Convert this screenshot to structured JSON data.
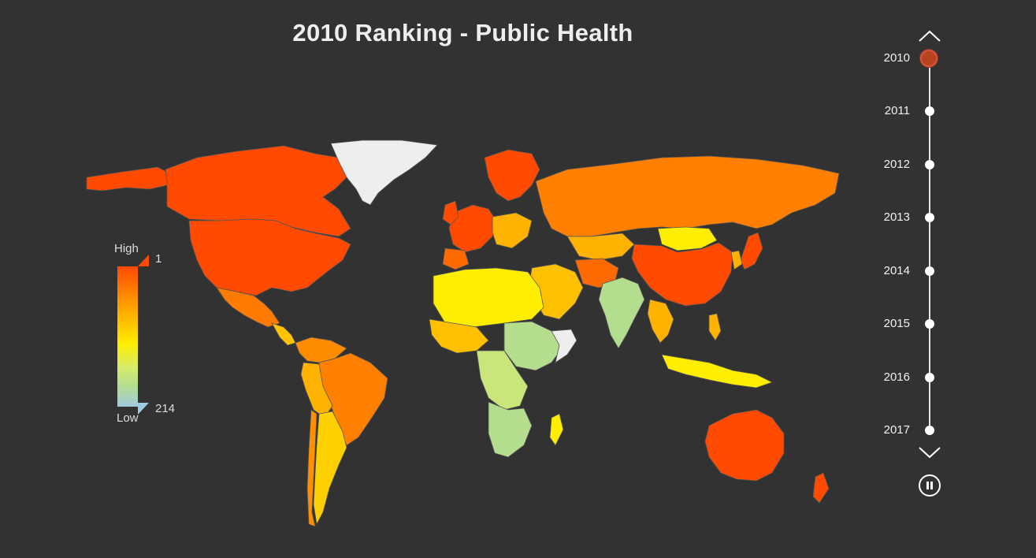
{
  "title": "2010 Ranking - Public Health",
  "legend": {
    "high_label": "High",
    "low_label": "Low",
    "max_rank": "1",
    "min_rank": "214",
    "colors": [
      "#ff4a00",
      "#ff8000",
      "#ffb300",
      "#ffee00",
      "#d6ec6a",
      "#b4dd8e",
      "#a2cbe0"
    ]
  },
  "timeline": {
    "years": [
      "2010",
      "2011",
      "2012",
      "2013",
      "2014",
      "2015",
      "2016",
      "2017"
    ],
    "active": "2010",
    "up_icon": "chevron-up-icon",
    "down_icon": "chevron-down-icon",
    "pause_icon": "pause-icon"
  },
  "map_colors": {
    "no_data": "#eeeeee",
    "background": "#323232"
  }
}
